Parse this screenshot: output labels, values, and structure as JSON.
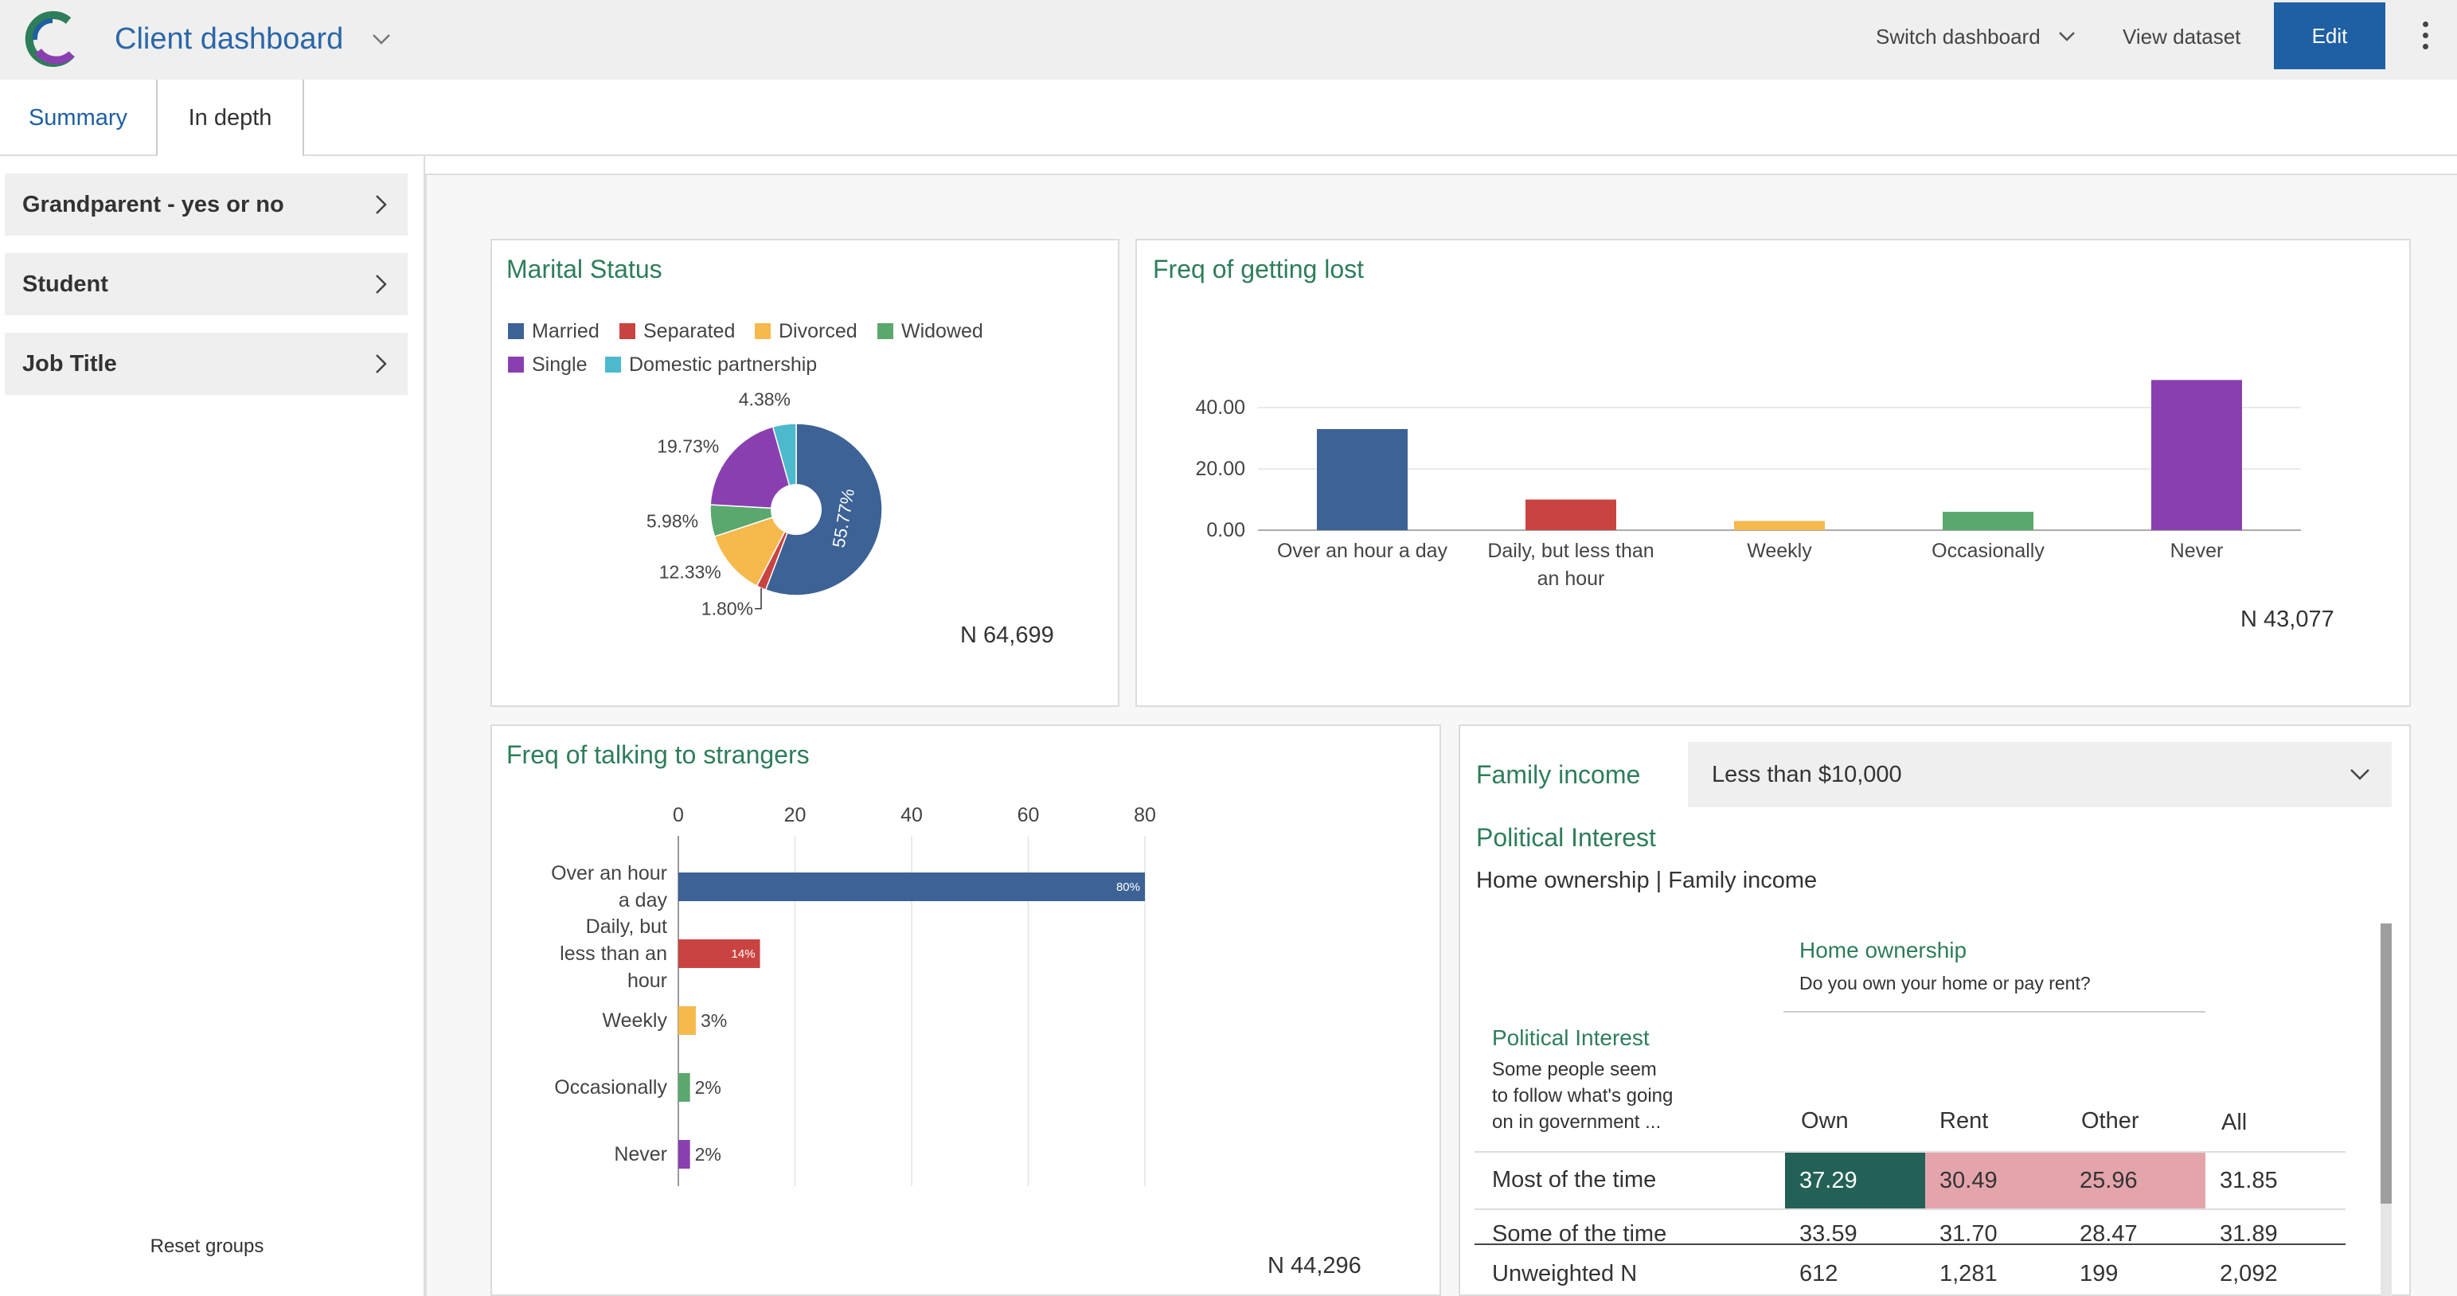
{
  "header": {
    "title": "Client dashboard",
    "switch_label": "Switch dashboard",
    "view_dataset_label": "View dataset",
    "edit_label": "Edit"
  },
  "tabs": [
    {
      "label": "Summary",
      "active": true
    },
    {
      "label": "In depth",
      "active": false
    }
  ],
  "sidebar": {
    "items": [
      {
        "label": "Grandparent - yes or no"
      },
      {
        "label": "Student"
      },
      {
        "label": "Job Title"
      }
    ],
    "reset_label": "Reset groups"
  },
  "marital": {
    "title": "Marital Status",
    "n_label": "N 64,699",
    "legend": [
      {
        "label": "Married",
        "color": "#3d6296"
      },
      {
        "label": "Separated",
        "color": "#c94441"
      },
      {
        "label": "Divorced",
        "color": "#f5b94e"
      },
      {
        "label": "Widowed",
        "color": "#5aa86e"
      },
      {
        "label": "Single",
        "color": "#8a3fb0"
      },
      {
        "label": "Domestic partnership",
        "color": "#4cb9cd"
      }
    ]
  },
  "lost": {
    "title": "Freq of getting lost",
    "n_label": "N 43,077"
  },
  "strangers": {
    "title": "Freq of talking to strangers",
    "n_label": "N 44,296"
  },
  "income": {
    "title": "Family income",
    "dropdown_value": "Less than $10,000",
    "table_title": "Political Interest",
    "subtitle": "Home ownership | Family income",
    "col_group_title": "Home ownership",
    "col_group_question": "Do you own your home or pay rent?",
    "row_title": "Political Interest",
    "row_question_1": "Some people seem",
    "row_question_2": "to follow what's going",
    "row_question_3": "on in government ...",
    "columns": [
      "Own",
      "Rent",
      "Other",
      "All"
    ],
    "rows": [
      {
        "label": "Most of the time",
        "values": [
          "37.29",
          "30.49",
          "25.96",
          "31.85"
        ]
      },
      {
        "label": "Some of the time",
        "values": [
          "33.59",
          "31.70",
          "28.47",
          "31.89"
        ]
      }
    ],
    "footer": {
      "label": "Unweighted N",
      "values": [
        "612",
        "1,281",
        "199",
        "2,092"
      ]
    }
  },
  "chart_data": [
    {
      "type": "pie",
      "title": "Marital Status",
      "categories": [
        "Married",
        "Separated",
        "Divorced",
        "Widowed",
        "Single",
        "Domestic partnership"
      ],
      "values": [
        55.77,
        1.8,
        12.33,
        5.98,
        19.73,
        4.38
      ],
      "value_labels": [
        "55.77%",
        "1.80%",
        "12.33%",
        "5.98%",
        "19.73%",
        "4.38%"
      ],
      "colors": [
        "#3d6296",
        "#c94441",
        "#f5b94e",
        "#5aa86e",
        "#8a3fb0",
        "#4cb9cd"
      ],
      "donut": true,
      "legend": "top"
    },
    {
      "type": "bar",
      "title": "Freq of getting lost",
      "categories": [
        "Over an hour a day",
        "Daily, but less than an hour",
        "Weekly",
        "Occasionally",
        "Never"
      ],
      "category_lines": [
        [
          "Over an hour a day"
        ],
        [
          "Daily, but less than",
          "an hour"
        ],
        [
          "Weekly"
        ],
        [
          "Occasionally"
        ],
        [
          "Never"
        ]
      ],
      "values": [
        33,
        10,
        3,
        6,
        49
      ],
      "colors": [
        "#3d6296",
        "#c94441",
        "#f5b94e",
        "#5aa86e",
        "#8a3fb0"
      ],
      "yticks": [
        "0.00",
        "20.00",
        "40.00"
      ],
      "ytick_values": [
        0,
        20,
        40
      ],
      "ylim": [
        0,
        49
      ],
      "grid": true
    },
    {
      "type": "bar",
      "orientation": "horizontal",
      "title": "Freq of talking to strangers",
      "categories": [
        "Over an hour a day",
        "Daily, but less than an hour",
        "Weekly",
        "Occasionally",
        "Never"
      ],
      "category_lines": [
        [
          "Over an hour",
          "a day"
        ],
        [
          "Daily, but",
          "less than an",
          "hour"
        ],
        [
          "Weekly"
        ],
        [
          "Occasionally"
        ],
        [
          "Never"
        ]
      ],
      "values": [
        80,
        14,
        3,
        2,
        2
      ],
      "value_labels": [
        "80%",
        "14%",
        "3%",
        "2%",
        "2%"
      ],
      "colors": [
        "#3d6296",
        "#c94441",
        "#f5b94e",
        "#5aa86e",
        "#8a3fb0"
      ],
      "xticks": [
        "0",
        "20",
        "40",
        "60",
        "80"
      ],
      "xtick_values": [
        0,
        20,
        40,
        60,
        80
      ],
      "xlim": [
        0,
        80
      ],
      "grid": true
    }
  ]
}
